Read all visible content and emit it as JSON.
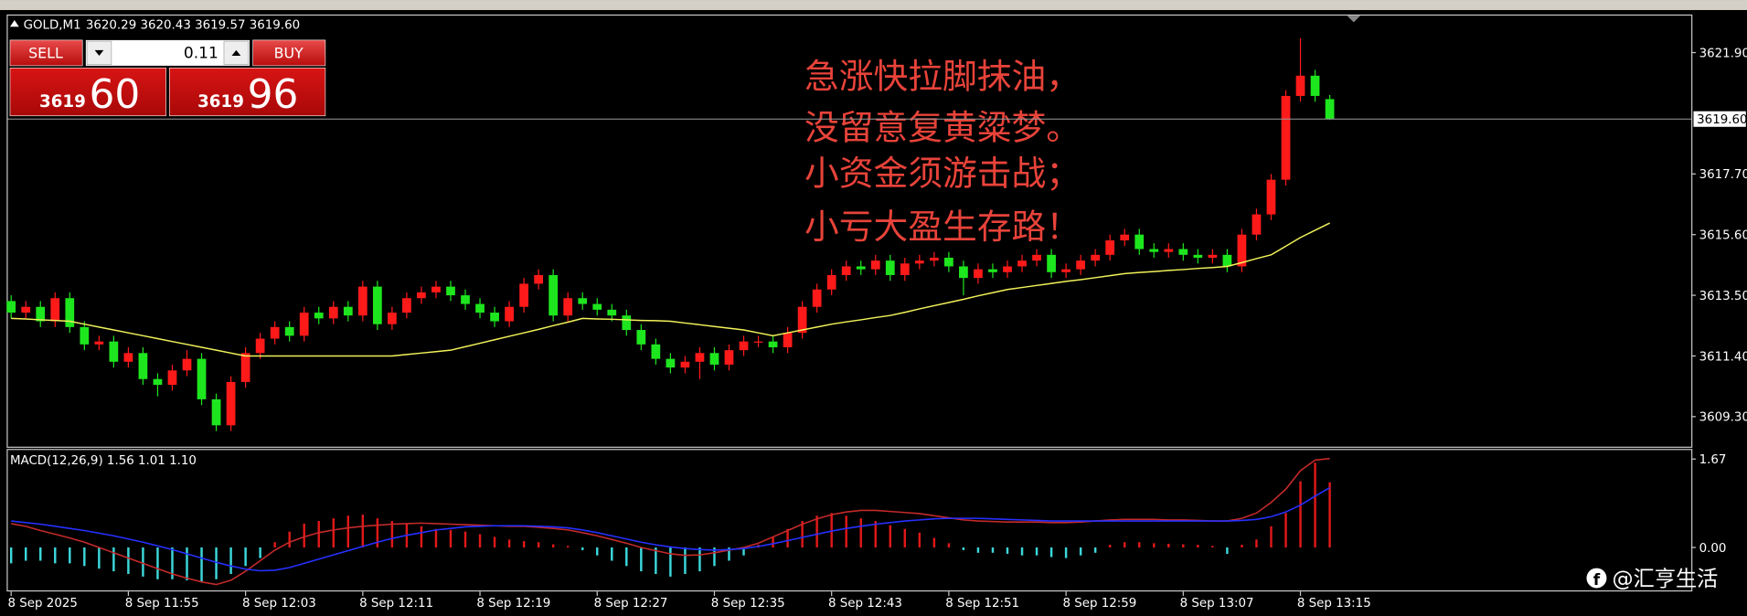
{
  "header": {
    "symbol": "GOLD,M1",
    "quote": "3620.29 3620.43 3619.57 3619.60"
  },
  "trade_panel": {
    "sell": "SELL",
    "buy": "BUY",
    "lot": 0.11,
    "bid_big": 3619,
    "bid_small": 60,
    "ask_big": 3619,
    "ask_small": 96
  },
  "annotation": [
    "急涨快拉脚抹油，",
    "没留意复黄粱梦。",
    "小资金须游击战；",
    "小亏大盈生存路！"
  ],
  "watermark": "@汇亨生活",
  "chart_data": [
    {
      "type": "candlestick",
      "categories": [
        "8 Sep 2025",
        null,
        null,
        null,
        null,
        null,
        null,
        null,
        "8 Sep 11:55",
        null,
        null,
        null,
        null,
        null,
        null,
        null,
        "8 Sep 12:03",
        null,
        null,
        null,
        null,
        null,
        null,
        null,
        "8 Sep 12:11",
        null,
        null,
        null,
        null,
        null,
        null,
        null,
        "8 Sep 12:19",
        null,
        null,
        null,
        null,
        null,
        null,
        null,
        "8 Sep 12:27",
        null,
        null,
        null,
        null,
        null,
        null,
        null,
        "8 Sep 12:35",
        null,
        null,
        null,
        null,
        null,
        null,
        null,
        "8 Sep 12:43",
        null,
        null,
        null,
        null,
        null,
        null,
        null,
        "8 Sep 12:51",
        null,
        null,
        null,
        null,
        null,
        null,
        null,
        "8 Sep 12:59",
        null,
        null,
        null,
        null,
        null,
        null,
        null,
        "8 Sep 13:07",
        null,
        null,
        null,
        null,
        null,
        null,
        null,
        "8 Sep 13:15",
        null,
        null
      ],
      "open": [
        3613.3,
        3612.9,
        3613.1,
        3612.6,
        3613.4,
        3612.4,
        3611.8,
        3611.9,
        3611.2,
        3611.5,
        3610.6,
        3610.4,
        3610.9,
        3611.3,
        3609.9,
        3609.0,
        3610.5,
        3611.5,
        3612.0,
        3612.4,
        3612.1,
        3612.9,
        3612.7,
        3613.1,
        3612.8,
        3613.8,
        3612.5,
        3612.9,
        3613.4,
        3613.6,
        3613.8,
        3613.5,
        3613.2,
        3612.9,
        3612.6,
        3613.1,
        3613.9,
        3614.2,
        3612.8,
        3613.4,
        3613.2,
        3613.0,
        3612.8,
        3612.3,
        3611.8,
        3611.3,
        3611.0,
        3611.2,
        3611.5,
        3611.1,
        3611.6,
        3611.9,
        3611.9,
        3611.7,
        3612.2,
        3613.1,
        3613.7,
        3614.2,
        3614.5,
        3614.4,
        3614.7,
        3614.2,
        3614.6,
        3614.7,
        3614.8,
        3614.5,
        3614.1,
        3614.4,
        3614.3,
        3614.5,
        3614.7,
        3614.9,
        3614.3,
        3614.4,
        3614.7,
        3614.9,
        3615.4,
        3615.6,
        3615.1,
        3615.0,
        3615.1,
        3614.9,
        3614.8,
        3614.9,
        3614.5,
        3615.6,
        3616.3,
        3617.5,
        3620.4,
        3621.1,
        3620.29
      ],
      "high": [
        3613.5,
        3613.3,
        3613.3,
        3613.6,
        3613.6,
        3612.6,
        3612.1,
        3612.1,
        3611.7,
        3611.7,
        3610.8,
        3611.1,
        3611.6,
        3611.5,
        3610.1,
        3610.7,
        3611.7,
        3612.2,
        3612.6,
        3612.6,
        3613.1,
        3613.1,
        3613.3,
        3613.3,
        3614.0,
        3614.0,
        3613.1,
        3613.6,
        3613.8,
        3614.0,
        3614.0,
        3613.7,
        3613.4,
        3613.1,
        3613.3,
        3614.1,
        3614.4,
        3614.4,
        3613.6,
        3613.6,
        3613.4,
        3613.2,
        3613.0,
        3612.5,
        3612.0,
        3611.5,
        3611.4,
        3611.7,
        3611.7,
        3611.8,
        3612.1,
        3612.1,
        3612.1,
        3612.4,
        3613.3,
        3613.9,
        3614.4,
        3614.7,
        3614.7,
        3614.9,
        3614.9,
        3614.8,
        3614.9,
        3615.0,
        3615.0,
        3614.7,
        3614.6,
        3614.6,
        3614.7,
        3614.9,
        3615.1,
        3615.1,
        3614.6,
        3614.9,
        3615.1,
        3615.6,
        3615.8,
        3615.8,
        3615.3,
        3615.3,
        3615.3,
        3615.1,
        3615.1,
        3615.1,
        3615.8,
        3616.5,
        3617.7,
        3620.6,
        3622.4,
        3621.3,
        3620.43
      ],
      "low": [
        3612.7,
        3612.7,
        3612.4,
        3612.4,
        3612.2,
        3611.6,
        3611.6,
        3611.0,
        3611.0,
        3610.4,
        3610.0,
        3610.2,
        3610.7,
        3609.7,
        3608.8,
        3608.8,
        3610.3,
        3611.3,
        3611.8,
        3611.9,
        3611.9,
        3612.5,
        3612.5,
        3612.6,
        3612.6,
        3612.3,
        3612.3,
        3612.7,
        3613.2,
        3613.4,
        3613.3,
        3613.0,
        3612.7,
        3612.4,
        3612.4,
        3612.9,
        3613.7,
        3612.6,
        3612.6,
        3613.0,
        3612.8,
        3612.6,
        3612.1,
        3611.6,
        3611.1,
        3610.8,
        3610.8,
        3610.6,
        3610.9,
        3610.9,
        3611.4,
        3611.7,
        3611.5,
        3611.5,
        3612.0,
        3612.9,
        3613.5,
        3614.0,
        3614.2,
        3614.2,
        3614.0,
        3614.0,
        3614.4,
        3614.5,
        3614.3,
        3613.5,
        3613.9,
        3614.1,
        3614.1,
        3614.3,
        3614.5,
        3614.1,
        3614.1,
        3614.2,
        3614.5,
        3614.7,
        3615.2,
        3614.9,
        3614.8,
        3614.8,
        3614.7,
        3614.6,
        3614.6,
        3614.3,
        3614.3,
        3615.4,
        3616.1,
        3617.3,
        3620.2,
        3620.2,
        3619.57
      ],
      "close": [
        3612.9,
        3613.1,
        3612.6,
        3613.4,
        3612.4,
        3611.8,
        3611.9,
        3611.2,
        3611.5,
        3610.6,
        3610.4,
        3610.9,
        3611.3,
        3609.9,
        3609.0,
        3610.5,
        3611.5,
        3612.0,
        3612.4,
        3612.1,
        3612.9,
        3612.7,
        3613.1,
        3612.8,
        3613.8,
        3612.5,
        3612.9,
        3613.4,
        3613.6,
        3613.8,
        3613.5,
        3613.2,
        3612.9,
        3612.6,
        3613.1,
        3613.9,
        3614.2,
        3612.8,
        3613.4,
        3613.2,
        3613.0,
        3612.8,
        3612.3,
        3611.8,
        3611.3,
        3611.0,
        3611.2,
        3611.5,
        3611.1,
        3611.6,
        3611.9,
        3611.9,
        3611.7,
        3612.2,
        3613.1,
        3613.7,
        3614.2,
        3614.5,
        3614.4,
        3614.7,
        3614.2,
        3614.6,
        3614.7,
        3614.8,
        3614.5,
        3614.1,
        3614.4,
        3614.3,
        3614.5,
        3614.7,
        3614.9,
        3614.3,
        3614.4,
        3614.7,
        3614.9,
        3615.4,
        3615.6,
        3615.1,
        3615.0,
        3615.1,
        3614.9,
        3614.8,
        3614.9,
        3614.5,
        3615.6,
        3616.3,
        3617.5,
        3620.4,
        3621.1,
        3620.4,
        3619.6
      ],
      "up_color": "#ff1a1a",
      "down_color": "#1ee61e",
      "ma": {
        "color": "#f2f25a",
        "values": [
          3612.7,
          3612.68,
          3612.65,
          3612.63,
          3612.6,
          3612.5,
          3612.4,
          3612.3,
          3612.2,
          3612.1,
          3612.0,
          3611.9,
          3611.8,
          3611.7,
          3611.6,
          3611.5,
          3611.4,
          3611.4,
          3611.4,
          3611.4,
          3611.4,
          3611.4,
          3611.4,
          3611.4,
          3611.4,
          3611.4,
          3611.4,
          3611.45,
          3611.5,
          3611.55,
          3611.6,
          3611.72,
          3611.84,
          3611.96,
          3612.08,
          3612.2,
          3612.32,
          3612.45,
          3612.57,
          3612.7,
          3612.68,
          3612.67,
          3612.65,
          3612.63,
          3612.62,
          3612.6,
          3612.54,
          3612.48,
          3612.42,
          3612.36,
          3612.3,
          3612.2,
          3612.1,
          3612.2,
          3612.3,
          3612.4,
          3612.5,
          3612.58,
          3612.65,
          3612.73,
          3612.8,
          3612.91,
          3613.03,
          3613.14,
          3613.25,
          3613.36,
          3613.48,
          3613.59,
          3613.7,
          3613.77,
          3613.84,
          3613.91,
          3613.98,
          3614.04,
          3614.11,
          3614.18,
          3614.25,
          3614.29,
          3614.32,
          3614.36,
          3614.39,
          3614.43,
          3614.46,
          3614.5,
          3614.63,
          3614.77,
          3614.9,
          3615.2,
          3615.5,
          3615.75,
          3616.0
        ]
      },
      "ylim": [
        3608.26,
        3623.18
      ],
      "yticks": [
        {
          "value": 3621.9,
          "label": "3621.90"
        },
        {
          "value": 3617.7,
          "label": "3617.70"
        },
        {
          "value": 3615.6,
          "label": "3615.60"
        },
        {
          "value": 3613.5,
          "label": "3613.50"
        },
        {
          "value": 3611.4,
          "label": "3611.40"
        },
        {
          "value": 3609.3,
          "label": "3609.30"
        }
      ],
      "last_price": {
        "value": 3619.6,
        "label": "3619.60"
      }
    },
    {
      "type": "macd",
      "title": "MACD(12,26,9) 1.56 1.01 1.10",
      "histogram": {
        "up_color": "#e01818",
        "down_color": "#3cd8dc",
        "values": [
          -0.3,
          -0.25,
          -0.25,
          -0.3,
          -0.3,
          -0.35,
          -0.4,
          -0.45,
          -0.5,
          -0.55,
          -0.6,
          -0.6,
          -0.62,
          -0.65,
          -0.6,
          -0.5,
          -0.35,
          -0.2,
          0.1,
          0.3,
          0.45,
          0.5,
          0.55,
          0.6,
          0.62,
          0.55,
          0.5,
          0.45,
          0.4,
          0.35,
          0.33,
          0.3,
          0.25,
          0.2,
          0.15,
          0.12,
          0.1,
          0.06,
          0.03,
          -0.05,
          -0.15,
          -0.25,
          -0.35,
          -0.45,
          -0.5,
          -0.55,
          -0.5,
          -0.45,
          -0.35,
          -0.25,
          -0.15,
          0.05,
          0.2,
          0.35,
          0.5,
          0.6,
          0.65,
          0.6,
          0.55,
          0.5,
          0.42,
          0.35,
          0.28,
          0.18,
          0.08,
          -0.05,
          -0.1,
          -0.1,
          -0.12,
          -0.15,
          -0.15,
          -0.18,
          -0.2,
          -0.15,
          -0.1,
          0.05,
          0.1,
          0.1,
          0.08,
          0.07,
          0.06,
          0.05,
          0.03,
          -0.12,
          0.05,
          0.15,
          0.4,
          0.65,
          1.25,
          1.6,
          1.23
        ]
      },
      "lines": [
        {
          "color": "#c42a2a",
          "values": [
            0.45,
            0.4,
            0.32,
            0.25,
            0.18,
            0.1,
            0.0,
            -0.1,
            -0.2,
            -0.3,
            -0.4,
            -0.5,
            -0.58,
            -0.65,
            -0.7,
            -0.62,
            -0.45,
            -0.25,
            -0.05,
            0.1,
            0.2,
            0.28,
            0.33,
            0.37,
            0.4,
            0.42,
            0.44,
            0.45,
            0.46,
            0.45,
            0.44,
            0.43,
            0.42,
            0.41,
            0.4,
            0.4,
            0.38,
            0.36,
            0.33,
            0.28,
            0.22,
            0.15,
            0.08,
            0.0,
            -0.06,
            -0.12,
            -0.15,
            -0.14,
            -0.1,
            -0.05,
            0.0,
            0.08,
            0.2,
            0.32,
            0.44,
            0.54,
            0.62,
            0.67,
            0.7,
            0.7,
            0.68,
            0.66,
            0.64,
            0.6,
            0.56,
            0.52,
            0.5,
            0.49,
            0.48,
            0.48,
            0.48,
            0.47,
            0.47,
            0.48,
            0.5,
            0.52,
            0.53,
            0.53,
            0.53,
            0.52,
            0.52,
            0.51,
            0.5,
            0.5,
            0.55,
            0.65,
            0.85,
            1.1,
            1.45,
            1.65,
            1.68
          ]
        },
        {
          "color": "#2630ff",
          "values": [
            0.5,
            0.47,
            0.44,
            0.4,
            0.36,
            0.32,
            0.27,
            0.22,
            0.16,
            0.1,
            0.03,
            -0.04,
            -0.12,
            -0.2,
            -0.28,
            -0.35,
            -0.41,
            -0.44,
            -0.43,
            -0.38,
            -0.3,
            -0.22,
            -0.14,
            -0.06,
            0.02,
            0.1,
            0.17,
            0.23,
            0.28,
            0.33,
            0.36,
            0.39,
            0.4,
            0.41,
            0.41,
            0.41,
            0.4,
            0.39,
            0.37,
            0.33,
            0.28,
            0.22,
            0.16,
            0.1,
            0.05,
            0.01,
            -0.02,
            -0.04,
            -0.05,
            -0.04,
            -0.02,
            0.02,
            0.07,
            0.13,
            0.19,
            0.25,
            0.31,
            0.36,
            0.4,
            0.44,
            0.47,
            0.5,
            0.52,
            0.54,
            0.55,
            0.55,
            0.55,
            0.54,
            0.53,
            0.52,
            0.51,
            0.5,
            0.5,
            0.5,
            0.5,
            0.5,
            0.5,
            0.5,
            0.5,
            0.5,
            0.5,
            0.5,
            0.5,
            0.5,
            0.51,
            0.53,
            0.58,
            0.67,
            0.8,
            0.97,
            1.13
          ]
        }
      ],
      "ylim": [
        -0.81,
        1.84
      ],
      "yticks": [
        {
          "value": 1.67,
          "label": "1.67"
        },
        {
          "value": 0,
          "label": "0.00"
        }
      ]
    }
  ]
}
